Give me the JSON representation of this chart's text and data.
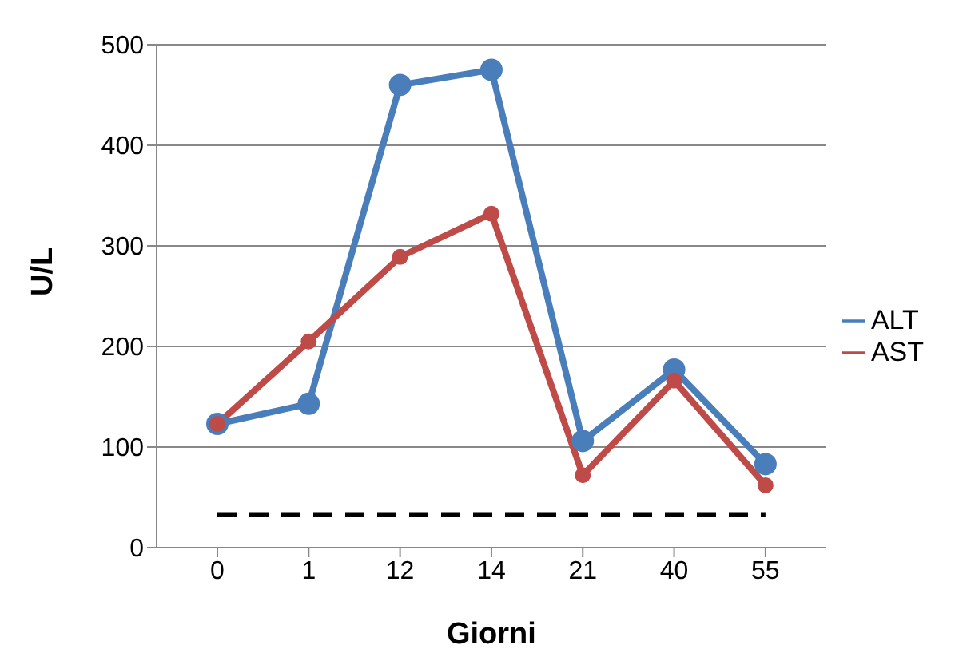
{
  "chart_data": {
    "type": "line",
    "xlabel": "Giorni",
    "ylabel": "U/L",
    "categories": [
      "0",
      "1",
      "12",
      "14",
      "21",
      "40",
      "55"
    ],
    "series": [
      {
        "name": "ALT",
        "color": "#4a7ebb",
        "values": [
          123,
          143,
          460,
          475,
          106,
          177,
          83
        ]
      },
      {
        "name": "AST",
        "color": "#be4b48",
        "values": [
          123,
          205,
          289,
          332,
          72,
          166,
          62
        ]
      }
    ],
    "ylim": [
      0,
      500
    ],
    "yticks": [
      0,
      100,
      200,
      300,
      400,
      500
    ],
    "grid": "y",
    "legend": "right",
    "marker": "circle",
    "line_style": "solid",
    "ref_lines": [
      {
        "axis": "y",
        "value": 33,
        "color": "#000000",
        "line_style": "dashed"
      }
    ]
  }
}
